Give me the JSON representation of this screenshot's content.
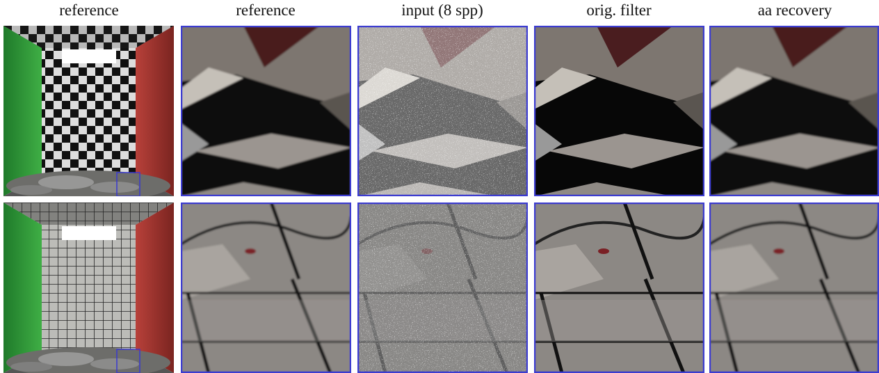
{
  "columns": [
    "reference",
    "reference",
    "input (8 spp)",
    "orig. filter",
    "aa recovery"
  ]
}
